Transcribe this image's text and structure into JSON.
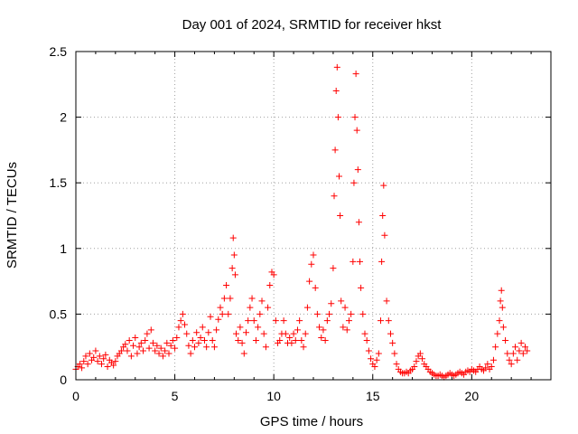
{
  "chart_data": {
    "type": "scatter",
    "title": "Day 001 of 2024, SRMTID for receiver hkst",
    "xlabel": "GPS time / hours",
    "ylabel": "SRMTID / TECUs",
    "xlim": [
      0,
      24
    ],
    "ylim": [
      0,
      2.5
    ],
    "xticks": [
      0,
      5,
      10,
      15,
      20
    ],
    "yticks": [
      0,
      0.5,
      1,
      1.5,
      2,
      2.5
    ],
    "xtick_labels": [
      "0",
      "5",
      "10",
      "15",
      "20"
    ],
    "ytick_labels": [
      "0",
      "0.5",
      "1",
      "1.5",
      "2",
      "2.5"
    ],
    "grid": true,
    "marker": "+",
    "color": "#ff0000",
    "series": [
      {
        "name": "SRMTID",
        "points": [
          [
            0.0,
            0.08
          ],
          [
            0.1,
            0.1
          ],
          [
            0.2,
            0.12
          ],
          [
            0.3,
            0.09
          ],
          [
            0.4,
            0.14
          ],
          [
            0.5,
            0.18
          ],
          [
            0.6,
            0.12
          ],
          [
            0.7,
            0.2
          ],
          [
            0.8,
            0.15
          ],
          [
            0.9,
            0.17
          ],
          [
            1.0,
            0.22
          ],
          [
            1.1,
            0.14
          ],
          [
            1.2,
            0.18
          ],
          [
            1.3,
            0.12
          ],
          [
            1.4,
            0.16
          ],
          [
            1.5,
            0.19
          ],
          [
            1.6,
            0.1
          ],
          [
            1.7,
            0.15
          ],
          [
            1.8,
            0.13
          ],
          [
            1.9,
            0.11
          ],
          [
            2.0,
            0.14
          ],
          [
            2.1,
            0.18
          ],
          [
            2.2,
            0.2
          ],
          [
            2.3,
            0.22
          ],
          [
            2.4,
            0.25
          ],
          [
            2.5,
            0.27
          ],
          [
            2.6,
            0.22
          ],
          [
            2.7,
            0.3
          ],
          [
            2.8,
            0.18
          ],
          [
            2.9,
            0.26
          ],
          [
            3.0,
            0.32
          ],
          [
            3.1,
            0.2
          ],
          [
            3.2,
            0.25
          ],
          [
            3.3,
            0.28
          ],
          [
            3.4,
            0.22
          ],
          [
            3.5,
            0.3
          ],
          [
            3.6,
            0.35
          ],
          [
            3.7,
            0.24
          ],
          [
            3.8,
            0.38
          ],
          [
            3.9,
            0.28
          ],
          [
            4.0,
            0.22
          ],
          [
            4.1,
            0.26
          ],
          [
            4.2,
            0.2
          ],
          [
            4.3,
            0.24
          ],
          [
            4.4,
            0.18
          ],
          [
            4.5,
            0.22
          ],
          [
            4.6,
            0.28
          ],
          [
            4.7,
            0.2
          ],
          [
            4.8,
            0.26
          ],
          [
            4.9,
            0.3
          ],
          [
            5.0,
            0.24
          ],
          [
            5.1,
            0.32
          ],
          [
            5.2,
            0.4
          ],
          [
            5.3,
            0.45
          ],
          [
            5.4,
            0.5
          ],
          [
            5.5,
            0.42
          ],
          [
            5.6,
            0.35
          ],
          [
            5.7,
            0.26
          ],
          [
            5.8,
            0.2
          ],
          [
            5.9,
            0.3
          ],
          [
            6.0,
            0.25
          ],
          [
            6.1,
            0.36
          ],
          [
            6.2,
            0.28
          ],
          [
            6.3,
            0.32
          ],
          [
            6.4,
            0.4
          ],
          [
            6.5,
            0.3
          ],
          [
            6.6,
            0.25
          ],
          [
            6.7,
            0.36
          ],
          [
            6.8,
            0.48
          ],
          [
            6.9,
            0.3
          ],
          [
            7.0,
            0.25
          ],
          [
            7.1,
            0.38
          ],
          [
            7.2,
            0.46
          ],
          [
            7.3,
            0.55
          ],
          [
            7.4,
            0.5
          ],
          [
            7.5,
            0.62
          ],
          [
            7.6,
            0.72
          ],
          [
            7.7,
            0.5
          ],
          [
            7.8,
            0.62
          ],
          [
            7.9,
            0.85
          ],
          [
            7.95,
            1.08
          ],
          [
            8.0,
            0.95
          ],
          [
            8.05,
            0.8
          ],
          [
            8.1,
            0.35
          ],
          [
            8.2,
            0.3
          ],
          [
            8.3,
            0.4
          ],
          [
            8.4,
            0.28
          ],
          [
            8.5,
            0.2
          ],
          [
            8.6,
            0.36
          ],
          [
            8.7,
            0.45
          ],
          [
            8.8,
            0.55
          ],
          [
            8.9,
            0.62
          ],
          [
            9.0,
            0.45
          ],
          [
            9.1,
            0.3
          ],
          [
            9.2,
            0.4
          ],
          [
            9.3,
            0.5
          ],
          [
            9.4,
            0.6
          ],
          [
            9.5,
            0.35
          ],
          [
            9.6,
            0.25
          ],
          [
            9.7,
            0.55
          ],
          [
            9.8,
            0.72
          ],
          [
            9.9,
            0.82
          ],
          [
            10.0,
            0.8
          ],
          [
            10.1,
            0.45
          ],
          [
            10.2,
            0.28
          ],
          [
            10.3,
            0.3
          ],
          [
            10.4,
            0.35
          ],
          [
            10.5,
            0.45
          ],
          [
            10.6,
            0.35
          ],
          [
            10.7,
            0.28
          ],
          [
            10.8,
            0.32
          ],
          [
            10.9,
            0.28
          ],
          [
            11.0,
            0.35
          ],
          [
            11.1,
            0.3
          ],
          [
            11.2,
            0.38
          ],
          [
            11.3,
            0.45
          ],
          [
            11.4,
            0.3
          ],
          [
            11.5,
            0.25
          ],
          [
            11.6,
            0.35
          ],
          [
            11.7,
            0.55
          ],
          [
            11.8,
            0.75
          ],
          [
            11.9,
            0.88
          ],
          [
            12.0,
            0.95
          ],
          [
            12.1,
            0.7
          ],
          [
            12.2,
            0.5
          ],
          [
            12.3,
            0.4
          ],
          [
            12.4,
            0.32
          ],
          [
            12.5,
            0.38
          ],
          [
            12.6,
            0.3
          ],
          [
            12.7,
            0.45
          ],
          [
            12.8,
            0.5
          ],
          [
            12.9,
            0.58
          ],
          [
            13.0,
            0.85
          ],
          [
            13.05,
            1.4
          ],
          [
            13.1,
            1.75
          ],
          [
            13.15,
            2.2
          ],
          [
            13.2,
            2.38
          ],
          [
            13.25,
            2.0
          ],
          [
            13.3,
            1.55
          ],
          [
            13.35,
            1.25
          ],
          [
            13.4,
            0.6
          ],
          [
            13.5,
            0.4
          ],
          [
            13.6,
            0.55
          ],
          [
            13.7,
            0.38
          ],
          [
            13.8,
            0.45
          ],
          [
            13.9,
            0.5
          ],
          [
            14.0,
            0.9
          ],
          [
            14.05,
            1.5
          ],
          [
            14.1,
            2.0
          ],
          [
            14.15,
            2.33
          ],
          [
            14.2,
            1.9
          ],
          [
            14.25,
            1.6
          ],
          [
            14.3,
            1.2
          ],
          [
            14.35,
            0.9
          ],
          [
            14.4,
            0.7
          ],
          [
            14.5,
            0.5
          ],
          [
            14.6,
            0.35
          ],
          [
            14.7,
            0.3
          ],
          [
            14.8,
            0.22
          ],
          [
            14.9,
            0.16
          ],
          [
            15.0,
            0.12
          ],
          [
            15.1,
            0.1
          ],
          [
            15.2,
            0.15
          ],
          [
            15.3,
            0.2
          ],
          [
            15.4,
            0.45
          ],
          [
            15.45,
            0.9
          ],
          [
            15.5,
            1.25
          ],
          [
            15.55,
            1.48
          ],
          [
            15.6,
            1.1
          ],
          [
            15.7,
            0.6
          ],
          [
            15.8,
            0.45
          ],
          [
            15.9,
            0.35
          ],
          [
            16.0,
            0.28
          ],
          [
            16.1,
            0.2
          ],
          [
            16.2,
            0.12
          ],
          [
            16.3,
            0.08
          ],
          [
            16.4,
            0.06
          ],
          [
            16.5,
            0.05
          ],
          [
            16.6,
            0.05
          ],
          [
            16.7,
            0.06
          ],
          [
            16.8,
            0.05
          ],
          [
            16.9,
            0.07
          ],
          [
            17.0,
            0.08
          ],
          [
            17.1,
            0.1
          ],
          [
            17.2,
            0.14
          ],
          [
            17.3,
            0.18
          ],
          [
            17.4,
            0.2
          ],
          [
            17.5,
            0.16
          ],
          [
            17.6,
            0.12
          ],
          [
            17.7,
            0.1
          ],
          [
            17.8,
            0.08
          ],
          [
            17.9,
            0.06
          ],
          [
            18.0,
            0.05
          ],
          [
            18.1,
            0.04
          ],
          [
            18.2,
            0.03
          ],
          [
            18.3,
            0.03
          ],
          [
            18.4,
            0.04
          ],
          [
            18.5,
            0.03
          ],
          [
            18.6,
            0.02
          ],
          [
            18.7,
            0.03
          ],
          [
            18.8,
            0.04
          ],
          [
            18.9,
            0.05
          ],
          [
            19.0,
            0.04
          ],
          [
            19.1,
            0.03
          ],
          [
            19.2,
            0.04
          ],
          [
            19.3,
            0.05
          ],
          [
            19.4,
            0.06
          ],
          [
            19.5,
            0.05
          ],
          [
            19.6,
            0.04
          ],
          [
            19.7,
            0.06
          ],
          [
            19.8,
            0.07
          ],
          [
            19.9,
            0.06
          ],
          [
            20.0,
            0.08
          ],
          [
            20.1,
            0.07
          ],
          [
            20.2,
            0.06
          ],
          [
            20.3,
            0.08
          ],
          [
            20.4,
            0.1
          ],
          [
            20.5,
            0.08
          ],
          [
            20.6,
            0.07
          ],
          [
            20.7,
            0.09
          ],
          [
            20.8,
            0.12
          ],
          [
            20.9,
            0.08
          ],
          [
            21.0,
            0.1
          ],
          [
            21.1,
            0.15
          ],
          [
            21.2,
            0.25
          ],
          [
            21.3,
            0.35
          ],
          [
            21.4,
            0.45
          ],
          [
            21.45,
            0.6
          ],
          [
            21.5,
            0.68
          ],
          [
            21.55,
            0.55
          ],
          [
            21.6,
            0.4
          ],
          [
            21.7,
            0.3
          ],
          [
            21.8,
            0.2
          ],
          [
            21.9,
            0.15
          ],
          [
            22.0,
            0.12
          ],
          [
            22.1,
            0.2
          ],
          [
            22.2,
            0.25
          ],
          [
            22.3,
            0.15
          ],
          [
            22.4,
            0.22
          ],
          [
            22.5,
            0.28
          ],
          [
            22.6,
            0.2
          ],
          [
            22.7,
            0.25
          ],
          [
            22.8,
            0.22
          ]
        ]
      }
    ]
  }
}
